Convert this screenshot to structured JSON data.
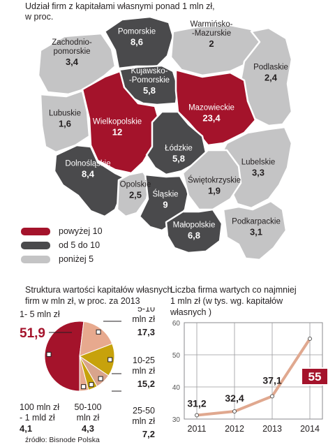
{
  "colors": {
    "high": "#a4132b",
    "mid": "#4a4a4c",
    "low": "#c4c4c5",
    "border": "#ffffff",
    "peach": "#e7a98e",
    "gold": "#c7a20c",
    "salmon": "#d9a48c",
    "line": "#e0a88f",
    "badge": "#a4132b"
  },
  "map": {
    "title_line1": "Udział firm z kapitałami własnymi ponad 1 mln zł,",
    "title_line2": "w proc.",
    "regions": [
      {
        "name": "Zachodnio-\npomorskie",
        "value": "3,4",
        "level": "low"
      },
      {
        "name": "Pomorskie",
        "value": "8,6",
        "level": "mid"
      },
      {
        "name": "Warmińsko-\n-Mazurskie",
        "value": "2",
        "level": "low"
      },
      {
        "name": "Podlaskie",
        "value": "2,4",
        "level": "low"
      },
      {
        "name": "Kujawsko-\n-Pomorskie",
        "value": "5,8",
        "level": "mid"
      },
      {
        "name": "Lubuskie",
        "value": "1,6",
        "level": "low"
      },
      {
        "name": "Wielkopolskie",
        "value": "12",
        "level": "high"
      },
      {
        "name": "Mazowieckie",
        "value": "23,4",
        "level": "high"
      },
      {
        "name": "Łódzkie",
        "value": "5,8",
        "level": "mid"
      },
      {
        "name": "Lubelskie",
        "value": "3,3",
        "level": "low"
      },
      {
        "name": "Dolnośląskie",
        "value": "8,4",
        "level": "mid"
      },
      {
        "name": "Opolskie",
        "value": "2,5",
        "level": "low"
      },
      {
        "name": "Śląskie",
        "value": "9",
        "level": "mid"
      },
      {
        "name": "Świętokrzyskie",
        "value": "1,9",
        "level": "low"
      },
      {
        "name": "Małopolskie",
        "value": "6,8",
        "level": "mid"
      },
      {
        "name": "Podkarpackie",
        "value": "3,1",
        "level": "low"
      }
    ],
    "legend": [
      {
        "label": "powyżej 10",
        "level": "high"
      },
      {
        "label": "od 5 do 10",
        "level": "mid"
      },
      {
        "label": "poniżej 5",
        "level": "low"
      }
    ]
  },
  "chart_data": [
    {
      "type": "pie",
      "title_line1": "Struktura wartości kapitałów własnych",
      "title_line2": "firm w mln zł, w proc. za 2013",
      "slices": [
        {
          "label_line1": "1- 5 mln zł",
          "label_line2": "",
          "value": 51.9,
          "display": "51,9"
        },
        {
          "label_line1": "5-10",
          "label_line2": "mln zł",
          "value": 17.3,
          "display": "17,3"
        },
        {
          "label_line1": "10-25",
          "label_line2": "mln zł",
          "value": 15.2,
          "display": "15,2"
        },
        {
          "label_line1": "25-50",
          "label_line2": "mln zł",
          "value": 7.2,
          "display": "7,2"
        },
        {
          "label_line1": "50-100",
          "label_line2": "mln zł",
          "value": 4.3,
          "display": "4,3"
        },
        {
          "label_line1": "100 mln zł",
          "label_line2": "- 1 mld zł",
          "value": 4.1,
          "display": "4,1"
        }
      ]
    },
    {
      "type": "line",
      "title_line1": "Liczba firma wartych co najmniej",
      "title_line2": "1 mln zł (w tys. wg. kapitałów",
      "title_line3": "własnych )",
      "x": [
        "2011",
        "2012",
        "2013",
        "2014"
      ],
      "values": [
        31.2,
        32.4,
        37.1,
        55
      ],
      "labels": [
        "31,2",
        "32,4",
        "37,1",
        "55"
      ],
      "yticks": [
        "30",
        "40",
        "50",
        "60"
      ],
      "ylim": [
        30,
        60
      ],
      "grid": true
    }
  ],
  "source": "źródło: Bisnode Polska"
}
